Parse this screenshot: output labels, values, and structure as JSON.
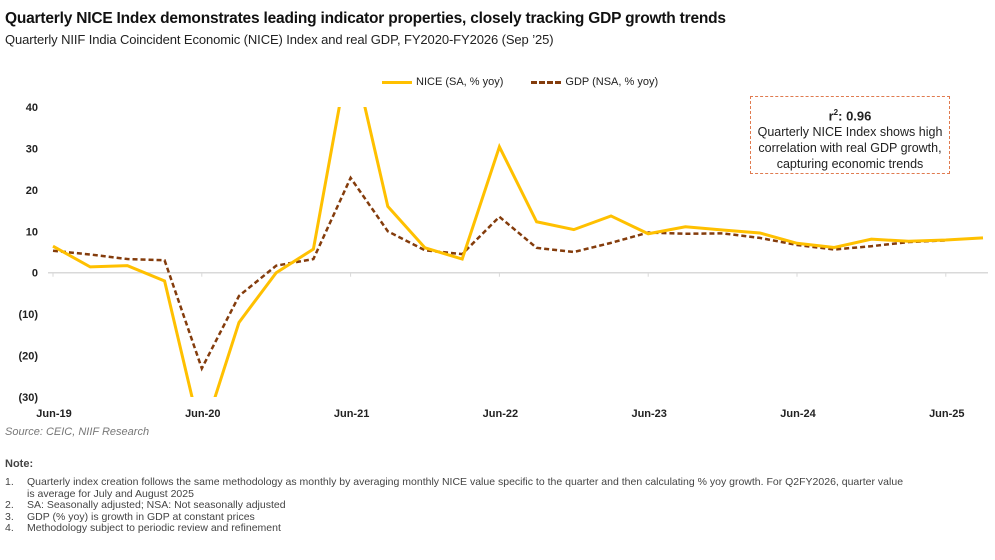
{
  "header": {
    "title": "Quarterly NICE Index demonstrates leading indicator properties, closely tracking GDP growth trends",
    "subtitle": "Quarterly NIIF India Coincident Economic (NICE) Index and real GDP, FY2020-FY2026 (Sep ’25)"
  },
  "annotation": {
    "r2_label": "r",
    "r2_sup": "2",
    "r2_value": ": 0.96",
    "line1": "Quarterly NICE Index shows high",
    "line2": "correlation with real GDP growth,",
    "line3": "capturing economic trends"
  },
  "colors": {
    "nice": "#FFC000",
    "gdp": "#843C0C",
    "annotation_border": "#E07B50",
    "zero_line": "#D9D9D9"
  },
  "chart_data": {
    "type": "line",
    "title": "Quarterly NIIF India Coincident Economic (NICE) Index and real GDP, FY2020-FY2026 (Sep '25)",
    "xlabel": "",
    "ylabel": "",
    "ylim": [
      -30,
      40
    ],
    "y_ticks": [
      40,
      30,
      20,
      10,
      0,
      -10,
      -20,
      -30
    ],
    "y_tick_labels": [
      "40",
      "30",
      "20",
      "10",
      "0",
      "(10)",
      "(20)",
      "(30)"
    ],
    "x": [
      "Jun-19",
      "Sep-19",
      "Dec-19",
      "Mar-20",
      "Jun-20",
      "Sep-20",
      "Dec-20",
      "Mar-21",
      "Jun-21",
      "Sep-21",
      "Dec-21",
      "Mar-22",
      "Jun-22",
      "Sep-22",
      "Dec-22",
      "Mar-23",
      "Jun-23",
      "Sep-23",
      "Dec-23",
      "Mar-24",
      "Jun-24",
      "Sep-24",
      "Dec-24",
      "Mar-25",
      "Jun-25",
      "Sep-25"
    ],
    "x_tick_labels": [
      "Jun-19",
      "Jun-20",
      "Jun-21",
      "Jun-22",
      "Jun-23",
      "Jun-24",
      "Jun-25"
    ],
    "grid": false,
    "legend_position": "top-center",
    "series": [
      {
        "name": "NICE (SA, % yoy)",
        "style": "solid",
        "values": [
          6.4,
          1.4,
          1.7,
          -2.0,
          -40.0,
          -12.0,
          0.0,
          5.7,
          55.0,
          16.0,
          6.0,
          3.3,
          30.4,
          12.3,
          10.4,
          13.7,
          9.4,
          11.1,
          10.3,
          9.6,
          7.1,
          6.1,
          8.1,
          7.6,
          7.9,
          8.4
        ]
      },
      {
        "name": "GDP (NSA, % yoy)",
        "style": "dashed",
        "values": [
          5.3,
          4.4,
          3.3,
          3.0,
          -23.1,
          -5.6,
          1.7,
          3.3,
          22.9,
          10.0,
          5.4,
          4.5,
          13.5,
          6.0,
          5.0,
          7.2,
          9.7,
          9.4,
          9.5,
          8.4,
          6.7,
          5.6,
          6.4,
          7.4,
          7.8,
          null
        ]
      }
    ]
  },
  "source": "Source: CEIC, NIIF Research",
  "notes": {
    "title": "Note:",
    "items": [
      {
        "num": "1.",
        "text": "Quarterly index creation follows the same methodology as monthly by averaging monthly NICE value specific to the quarter and then calculating % yoy growth. For Q2FY2026, quarter value is average for July and August 2025"
      },
      {
        "num": "2.",
        "text": "SA: Seasonally adjusted; NSA: Not seasonally adjusted"
      },
      {
        "num": "3.",
        "text": "GDP (% yoy) is growth in GDP at constant prices"
      },
      {
        "num": "4.",
        "text": "Methodology subject to periodic review and refinement"
      }
    ]
  }
}
